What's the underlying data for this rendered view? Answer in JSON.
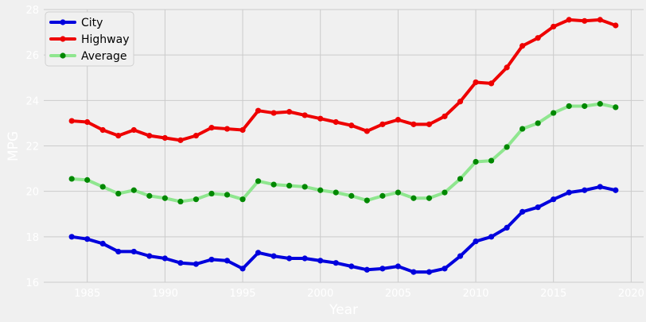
{
  "chart_data": {
    "type": "line",
    "title": "",
    "xlabel": "Year",
    "ylabel": "MPG",
    "xlim": [
      1982.2,
      2020.8
    ],
    "ylim": [
      16,
      28
    ],
    "xticks": [
      1985,
      1990,
      1995,
      2000,
      2005,
      2010,
      2015,
      2020
    ],
    "yticks": [
      16,
      18,
      20,
      22,
      24,
      26,
      28
    ],
    "grid": true,
    "legend_position": "top-left",
    "x": [
      1984,
      1985,
      1986,
      1987,
      1988,
      1989,
      1990,
      1991,
      1992,
      1993,
      1994,
      1995,
      1996,
      1997,
      1998,
      1999,
      2000,
      2001,
      2002,
      2003,
      2004,
      2005,
      2006,
      2007,
      2008,
      2009,
      2010,
      2011,
      2012,
      2013,
      2014,
      2015,
      2016,
      2017,
      2018,
      2019
    ],
    "series": [
      {
        "name": "City",
        "color": "#0000dd",
        "values": [
          18.0,
          17.9,
          17.7,
          17.35,
          17.35,
          17.15,
          17.05,
          16.85,
          16.8,
          17.0,
          16.95,
          16.6,
          17.3,
          17.15,
          17.05,
          17.05,
          16.95,
          16.85,
          16.7,
          16.55,
          16.6,
          16.7,
          16.45,
          16.45,
          16.6,
          17.15,
          17.8,
          18.0,
          18.4,
          19.1,
          19.3,
          19.65,
          19.95,
          20.05,
          20.2,
          20.05
        ]
      },
      {
        "name": "Highway",
        "color": "#ee0000",
        "values": [
          23.1,
          23.05,
          22.7,
          22.45,
          22.7,
          22.45,
          22.35,
          22.25,
          22.45,
          22.8,
          22.75,
          22.7,
          23.55,
          23.45,
          23.5,
          23.35,
          23.2,
          23.05,
          22.9,
          22.65,
          22.95,
          23.15,
          22.95,
          22.95,
          23.3,
          23.95,
          24.8,
          24.75,
          25.45,
          26.4,
          26.75,
          27.25,
          27.55,
          27.5,
          27.55,
          27.3
        ]
      },
      {
        "name": "Average",
        "color": "#8fe68f",
        "marker_color": "#008800",
        "values": [
          20.55,
          20.5,
          20.2,
          19.9,
          20.05,
          19.8,
          19.7,
          19.55,
          19.65,
          19.9,
          19.85,
          19.65,
          20.45,
          20.3,
          20.25,
          20.2,
          20.05,
          19.95,
          19.8,
          19.6,
          19.8,
          19.95,
          19.7,
          19.7,
          19.95,
          20.55,
          21.3,
          21.35,
          21.95,
          22.75,
          23.0,
          23.45,
          23.75,
          23.75,
          23.85,
          23.7
        ]
      }
    ]
  }
}
